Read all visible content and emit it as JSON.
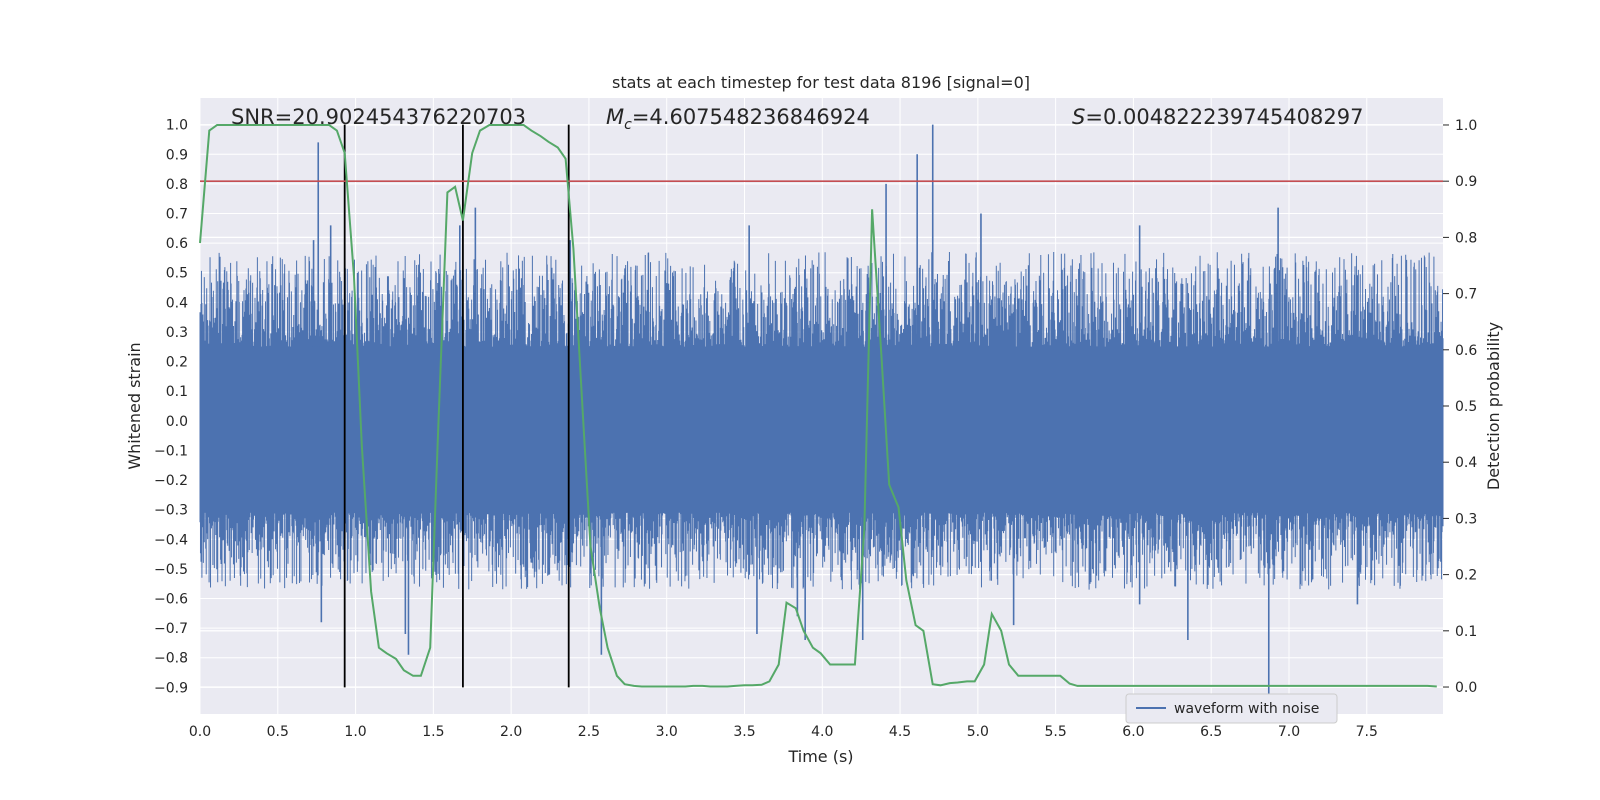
{
  "chart_data": {
    "type": "line",
    "title": "stats at each timestep for test data 8196 [signal=0]",
    "xlabel": "Time (s)",
    "ylabel": "Whitened strain",
    "y2label": "Detection probability",
    "xlim": [
      0.0,
      7.99
    ],
    "ylim": [
      -0.99,
      1.09
    ],
    "y2lim": [
      -0.048,
      1.048
    ],
    "xticks": [
      "0.0",
      "0.5",
      "1.0",
      "1.5",
      "2.0",
      "2.5",
      "3.0",
      "3.5",
      "4.0",
      "4.5",
      "5.0",
      "5.5",
      "6.0",
      "6.5",
      "7.0",
      "7.5"
    ],
    "yticks": [
      "-0.9",
      "-0.8",
      "-0.7",
      "-0.6",
      "-0.5",
      "-0.4",
      "-0.3",
      "-0.2",
      "-0.1",
      "0.0",
      "0.1",
      "0.2",
      "0.3",
      "0.4",
      "0.5",
      "0.6",
      "0.7",
      "0.8",
      "0.9",
      "1.0"
    ],
    "y2ticks": [
      "0.0",
      "0.1",
      "0.2",
      "0.3",
      "0.4",
      "0.5",
      "0.6",
      "0.7",
      "0.8",
      "0.9",
      "1.0"
    ],
    "grid": true,
    "annotations": {
      "snr": "SNR=20.902454376220703",
      "mc_symbol": "M",
      "mc_sub": "c",
      "mc_value": "=4.607548236846924",
      "s_symbol": "S",
      "s_value": "=0.004822239745408297"
    },
    "legend": {
      "position": "lower-center",
      "entries": [
        "waveform with noise"
      ]
    },
    "colors": {
      "waveform": "#4c72b0",
      "probability": "#55a868",
      "threshold": "#c44e52",
      "markers": "#000000",
      "background": "#eaeaf2",
      "grid": "#ffffff"
    },
    "threshold": {
      "axis": "right",
      "value": 0.9
    },
    "vertical_markers": {
      "x": [
        0.93,
        1.69,
        2.37
      ],
      "y_range": [
        -0.9,
        1.0
      ]
    },
    "series": [
      {
        "name": "waveform with noise",
        "axis": "left",
        "kind": "noise-band",
        "core_range": [
          -0.31,
          0.25
        ],
        "typical_range": [
          -0.45,
          0.45
        ],
        "spikes": [
          {
            "x": 0.76,
            "y": 0.94
          },
          {
            "x": 0.78,
            "y": -0.68
          },
          {
            "x": 0.84,
            "y": 0.66
          },
          {
            "x": 0.73,
            "y": 0.61
          },
          {
            "x": 1.32,
            "y": -0.72
          },
          {
            "x": 1.34,
            "y": -0.79
          },
          {
            "x": 1.67,
            "y": 0.66
          },
          {
            "x": 1.77,
            "y": 0.72
          },
          {
            "x": 2.38,
            "y": 0.61
          },
          {
            "x": 2.58,
            "y": -0.79
          },
          {
            "x": 3.53,
            "y": 0.66
          },
          {
            "x": 3.58,
            "y": -0.72
          },
          {
            "x": 3.84,
            "y": -0.66
          },
          {
            "x": 3.89,
            "y": -0.74
          },
          {
            "x": 4.26,
            "y": -0.74
          },
          {
            "x": 4.41,
            "y": 0.8
          },
          {
            "x": 4.61,
            "y": 0.9
          },
          {
            "x": 4.71,
            "y": 1.0
          },
          {
            "x": 5.02,
            "y": 0.7
          },
          {
            "x": 6.04,
            "y": -0.62
          },
          {
            "x": 6.04,
            "y": 0.66
          },
          {
            "x": 6.35,
            "y": -0.74
          },
          {
            "x": 6.87,
            "y": -0.96
          },
          {
            "x": 6.93,
            "y": 0.72
          },
          {
            "x": 5.23,
            "y": -0.69
          },
          {
            "x": 7.44,
            "y": -0.62
          }
        ]
      },
      {
        "name": "detection probability",
        "axis": "right",
        "x": [
          0.0,
          0.06,
          0.11,
          0.17,
          0.22,
          0.28,
          0.33,
          0.39,
          0.44,
          0.5,
          0.55,
          0.61,
          0.66,
          0.72,
          0.77,
          0.83,
          0.88,
          0.93,
          0.99,
          1.04,
          1.1,
          1.15,
          1.2,
          1.26,
          1.31,
          1.37,
          1.42,
          1.48,
          1.53,
          1.59,
          1.64,
          1.69,
          1.75,
          1.8,
          1.86,
          1.91,
          1.97,
          2.02,
          2.08,
          2.13,
          2.19,
          2.24,
          2.3,
          2.35,
          2.4,
          2.46,
          2.51,
          2.57,
          2.62,
          2.68,
          2.73,
          2.79,
          2.84,
          2.9,
          2.95,
          3.01,
          3.06,
          3.12,
          3.17,
          3.23,
          3.28,
          3.34,
          3.39,
          3.44,
          3.5,
          3.55,
          3.61,
          3.66,
          3.72,
          3.77,
          3.83,
          3.88,
          3.94,
          3.99,
          4.05,
          4.1,
          4.16,
          4.21,
          4.27,
          4.32,
          4.38,
          4.43,
          4.49,
          4.54,
          4.6,
          4.65,
          4.71,
          4.76,
          4.82,
          4.87,
          4.93,
          4.98,
          5.04,
          5.09,
          5.15,
          5.2,
          5.26,
          5.31,
          5.37,
          5.42,
          5.48,
          5.53,
          5.59,
          5.64,
          5.7,
          5.75,
          5.81,
          5.86,
          5.92,
          5.97,
          6.03,
          6.08,
          6.13,
          6.19,
          6.24,
          6.3,
          6.35,
          6.41,
          6.46,
          6.52,
          6.57,
          6.63,
          6.68,
          6.74,
          6.79,
          6.85,
          6.9,
          6.96,
          7.01,
          7.07,
          7.12,
          7.18,
          7.23,
          7.29,
          7.34,
          7.4,
          7.45,
          7.51,
          7.56,
          7.62,
          7.67,
          7.73,
          7.78,
          7.84,
          7.89,
          7.95
        ],
        "y": [
          0.79,
          0.99,
          1.0,
          1.0,
          1.0,
          1.0,
          1.0,
          1.0,
          1.0,
          1.0,
          1.0,
          1.0,
          1.0,
          1.0,
          1.0,
          1.0,
          0.99,
          0.95,
          0.73,
          0.43,
          0.17,
          0.07,
          0.06,
          0.05,
          0.03,
          0.02,
          0.02,
          0.07,
          0.45,
          0.88,
          0.89,
          0.83,
          0.95,
          0.99,
          1.0,
          1.0,
          1.0,
          1.0,
          1.0,
          0.99,
          0.98,
          0.97,
          0.96,
          0.94,
          0.78,
          0.49,
          0.25,
          0.14,
          0.07,
          0.02,
          0.005,
          0.002,
          0.001,
          0.001,
          0.001,
          0.001,
          0.001,
          0.001,
          0.002,
          0.002,
          0.001,
          0.001,
          0.001,
          0.002,
          0.003,
          0.003,
          0.004,
          0.01,
          0.04,
          0.15,
          0.14,
          0.1,
          0.07,
          0.06,
          0.04,
          0.04,
          0.04,
          0.04,
          0.28,
          0.85,
          0.59,
          0.36,
          0.32,
          0.19,
          0.11,
          0.1,
          0.005,
          0.003,
          0.007,
          0.008,
          0.01,
          0.01,
          0.04,
          0.13,
          0.1,
          0.04,
          0.02,
          0.02,
          0.02,
          0.02,
          0.02,
          0.02,
          0.006,
          0.002,
          0.002,
          0.002,
          0.002,
          0.002,
          0.002,
          0.002,
          0.002,
          0.002,
          0.002,
          0.002,
          0.002,
          0.002,
          0.002,
          0.002,
          0.002,
          0.002,
          0.002,
          0.002,
          0.002,
          0.002,
          0.002,
          0.002,
          0.002,
          0.002,
          0.002,
          0.002,
          0.002,
          0.002,
          0.002,
          0.002,
          0.002,
          0.002,
          0.002,
          0.002,
          0.002,
          0.002,
          0.002,
          0.002,
          0.002,
          0.002,
          0.002,
          0.001
        ]
      }
    ]
  }
}
